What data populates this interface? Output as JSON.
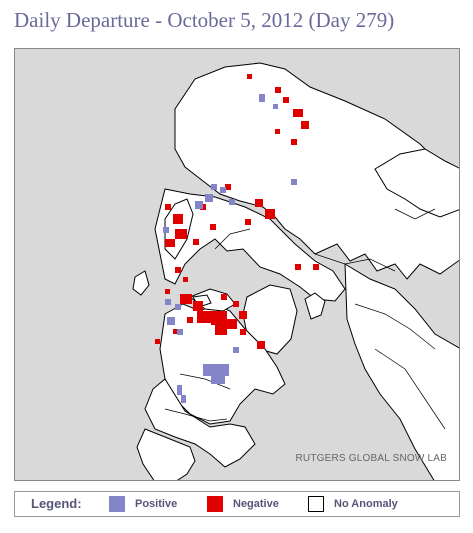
{
  "title": "Daily Departure - October 5, 2012 (Day 279)",
  "credit": "RUTGERS GLOBAL SNOW LAB",
  "colors": {
    "background": "#d9d9d9",
    "land": "#ffffff",
    "coast": "#000000",
    "positive": "#8484c8",
    "negative": "#e00000",
    "title": "#6a6a9a"
  },
  "legend": {
    "title": "Legend:",
    "items": [
      {
        "label": "Positive",
        "color": "#8484c8"
      },
      {
        "label": "Negative",
        "color": "#e00000"
      },
      {
        "label": "No Anomaly",
        "color": "#ffffff"
      }
    ]
  }
}
